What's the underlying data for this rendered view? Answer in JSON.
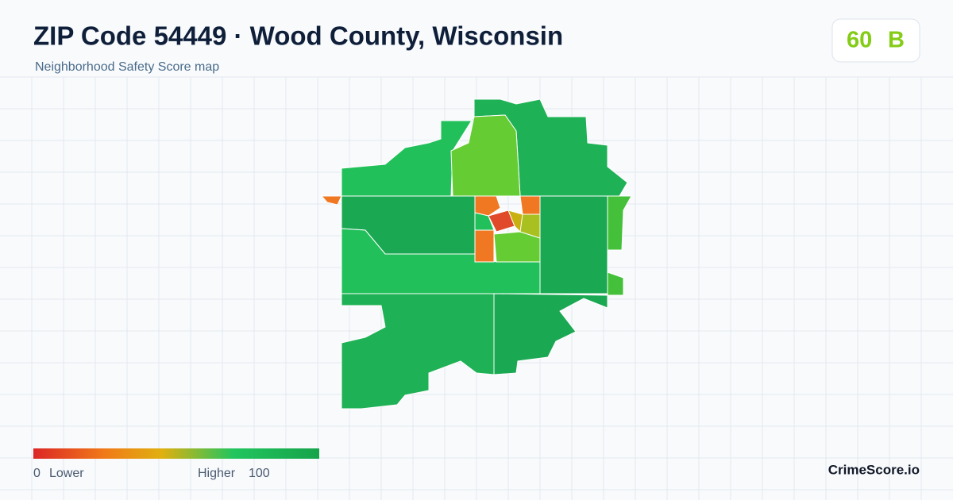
{
  "header": {
    "title": "ZIP Code 54449 · Wood County, Wisconsin",
    "subtitle": "Neighborhood Safety Score map"
  },
  "score": {
    "value": 60,
    "grade": "B"
  },
  "legend": {
    "min": 0,
    "low_label": "Lower",
    "high_label": "Higher",
    "max": 100
  },
  "brand": "CrimeScore.io"
}
